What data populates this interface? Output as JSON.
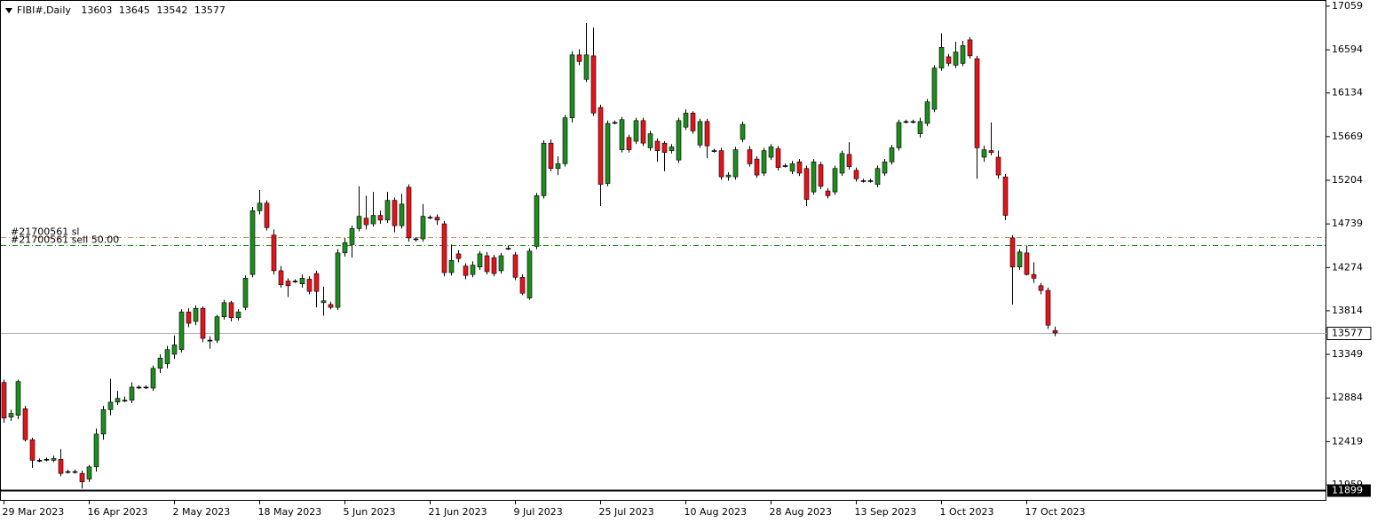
{
  "chart_data": {
    "type": "candlestick",
    "title": "FIBI#,Daily",
    "ylim": [
      11798,
      17125
    ],
    "yticks": [
      17059,
      16594,
      16134,
      15669,
      15204,
      14739,
      14274,
      13814,
      13349,
      12884,
      12419,
      11959
    ],
    "grid": false,
    "up_color": "#1e8c1e",
    "down_color": "#e3141b",
    "current_line_color": "#b0b0b0",
    "categories": [
      "29 Mar 2023",
      null,
      null,
      null,
      null,
      null,
      null,
      null,
      null,
      null,
      null,
      null,
      "16 Apr 2023",
      null,
      null,
      null,
      null,
      null,
      null,
      null,
      null,
      null,
      null,
      null,
      "2 May 2023",
      null,
      null,
      null,
      null,
      null,
      null,
      null,
      null,
      null,
      null,
      null,
      "18 May 2023",
      null,
      null,
      null,
      null,
      null,
      null,
      null,
      null,
      null,
      null,
      null,
      "5 Jun 2023",
      null,
      null,
      null,
      null,
      null,
      null,
      null,
      null,
      null,
      null,
      null,
      "21 Jun 2023",
      null,
      null,
      null,
      null,
      null,
      null,
      null,
      null,
      null,
      null,
      null,
      "9 Jul 2023",
      null,
      null,
      null,
      null,
      null,
      null,
      null,
      null,
      null,
      null,
      null,
      "25 Jul 2023",
      null,
      null,
      null,
      null,
      null,
      null,
      null,
      null,
      null,
      null,
      null,
      "10 Aug 2023",
      null,
      null,
      null,
      null,
      null,
      null,
      null,
      null,
      null,
      null,
      null,
      "28 Aug 2023",
      null,
      null,
      null,
      null,
      null,
      null,
      null,
      null,
      null,
      null,
      null,
      "13 Sep 2023",
      null,
      null,
      null,
      null,
      null,
      null,
      null,
      null,
      null,
      null,
      null,
      "1 Oct 2023",
      null,
      null,
      null,
      null,
      null,
      null,
      null,
      null,
      null,
      null,
      null,
      "17 Oct 2023",
      null,
      null,
      null,
      null
    ],
    "series": {
      "open": [
        13050,
        12680,
        12700,
        12770,
        12440,
        12220,
        12230,
        12220,
        12230,
        12100,
        12100,
        12080,
        12020,
        12150,
        12500,
        12760,
        12840,
        12860,
        12860,
        13000,
        13000,
        12990,
        13200,
        13250,
        13350,
        13400,
        13800,
        13700,
        13840,
        13500,
        13500,
        13750,
        13900,
        13740,
        13850,
        14200,
        14880,
        14960,
        14620,
        14240,
        14130,
        14130,
        14100,
        14150,
        14210,
        13900,
        13880,
        13850,
        14430,
        14520,
        14690,
        14800,
        14740,
        14830,
        14780,
        14990,
        14720,
        15130,
        14580,
        14580,
        14810,
        14810,
        14740,
        14220,
        14420,
        14290,
        14200,
        14280,
        14400,
        14380,
        14240,
        14480,
        14410,
        14170,
        13950,
        14500,
        15040,
        15600,
        15330,
        15380,
        15870,
        16540,
        16280,
        16530,
        15980,
        15170,
        15820,
        15530,
        15660,
        15620,
        15840,
        15550,
        15620,
        15600,
        15520,
        15420,
        15770,
        15920,
        15580,
        15830,
        15520,
        15520,
        15240,
        15240,
        15640,
        15530,
        15430,
        15280,
        15450,
        15540,
        15360,
        15300,
        15400,
        15330,
        15080,
        15370,
        15090,
        15080,
        15280,
        15480,
        15310,
        15200,
        15200,
        15160,
        15280,
        15400,
        15550,
        15830,
        15830,
        15700,
        15810,
        15960,
        16400,
        16520,
        16430,
        16450,
        16700,
        16500,
        15450,
        15520,
        15450,
        15240,
        14590,
        14280,
        14430,
        14200,
        14080,
        14030,
        13603
      ],
      "high": [
        13080,
        12760,
        13080,
        12800,
        12460,
        12240,
        12250,
        12270,
        12340,
        12120,
        12120,
        12110,
        12170,
        12560,
        12800,
        13090,
        12960,
        12900,
        13050,
        13020,
        13020,
        13230,
        13350,
        13440,
        13550,
        13830,
        13840,
        13870,
        13860,
        13540,
        13770,
        13930,
        13920,
        13830,
        14190,
        14920,
        15100,
        14990,
        14680,
        14290,
        14160,
        14150,
        14200,
        14180,
        14240,
        14070,
        13910,
        14470,
        14590,
        14720,
        15140,
        15040,
        15080,
        14880,
        15080,
        15020,
        15060,
        15160,
        14600,
        14950,
        14830,
        14840,
        14770,
        14520,
        14460,
        14320,
        14340,
        14450,
        14440,
        14410,
        14430,
        14510,
        14440,
        14200,
        14480,
        15070,
        15630,
        15640,
        15460,
        15900,
        16580,
        16600,
        16880,
        16830,
        16010,
        15840,
        15840,
        15880,
        15690,
        15870,
        15870,
        15730,
        15650,
        15620,
        15590,
        15870,
        15960,
        15940,
        15860,
        15860,
        15540,
        15550,
        15290,
        15560,
        15830,
        15570,
        15460,
        15550,
        15590,
        15570,
        15380,
        15410,
        15430,
        15360,
        15430,
        15400,
        15120,
        15360,
        15520,
        15610,
        15340,
        15220,
        15220,
        15360,
        15430,
        15580,
        15850,
        15850,
        15850,
        15870,
        16070,
        16430,
        16770,
        16550,
        16680,
        16690,
        16730,
        16530,
        15570,
        15820,
        15520,
        15270,
        14620,
        14470,
        14510,
        14330,
        14110,
        14060,
        13645
      ],
      "low": [
        12620,
        12640,
        12660,
        12420,
        12140,
        12200,
        12210,
        12200,
        12050,
        12080,
        12080,
        11920,
        11990,
        12100,
        12440,
        12700,
        12810,
        12840,
        12830,
        12980,
        12980,
        12960,
        13150,
        13200,
        13300,
        13370,
        13640,
        13660,
        13480,
        13410,
        13470,
        13720,
        13700,
        13710,
        13820,
        14170,
        14840,
        14670,
        14200,
        14060,
        13960,
        14110,
        14060,
        13990,
        13850,
        13760,
        13830,
        13820,
        14390,
        14380,
        14660,
        14680,
        14710,
        14740,
        14750,
        14650,
        14690,
        14550,
        14550,
        14550,
        14790,
        14730,
        14180,
        14190,
        14330,
        14150,
        14170,
        14250,
        14200,
        14180,
        14210,
        14460,
        14140,
        13980,
        13930,
        14470,
        15010,
        15300,
        15260,
        15350,
        15820,
        16430,
        16250,
        15890,
        14930,
        15140,
        15800,
        15500,
        15500,
        15590,
        15570,
        15520,
        15400,
        15300,
        15490,
        15390,
        15740,
        15700,
        15550,
        15440,
        15500,
        15210,
        15200,
        15210,
        15610,
        15350,
        15230,
        15250,
        15420,
        15310,
        15340,
        15270,
        15250,
        14930,
        15050,
        15110,
        15010,
        15050,
        15250,
        15320,
        15190,
        15180,
        15180,
        15130,
        15250,
        15370,
        15520,
        15810,
        15810,
        15660,
        15780,
        15930,
        16370,
        16420,
        16400,
        16420,
        16500,
        15220,
        15400,
        15470,
        15220,
        14780,
        13880,
        14250,
        14190,
        14110,
        13990,
        13620,
        13542
      ],
      "close": [
        12670,
        12720,
        13060,
        12440,
        12220,
        12220,
        12230,
        12240,
        12080,
        12100,
        12100,
        11990,
        12150,
        12500,
        12760,
        12840,
        12880,
        12860,
        13000,
        13000,
        13000,
        13200,
        13310,
        13400,
        13450,
        13800,
        13680,
        13840,
        13520,
        13500,
        13750,
        13900,
        13740,
        13800,
        14160,
        14880,
        14960,
        14700,
        14240,
        14090,
        14080,
        14130,
        14160,
        14020,
        14020,
        13920,
        13850,
        14430,
        14540,
        14690,
        14820,
        14730,
        14830,
        14780,
        14990,
        14720,
        14950,
        14590,
        14580,
        14820,
        14810,
        14780,
        14220,
        14350,
        14370,
        14190,
        14300,
        14420,
        14230,
        14210,
        14400,
        14480,
        14170,
        14000,
        14450,
        15040,
        15600,
        15330,
        15380,
        15870,
        16540,
        16470,
        16540,
        15920,
        15160,
        15810,
        15820,
        15850,
        15530,
        15840,
        15600,
        15700,
        15520,
        15500,
        15560,
        15840,
        15920,
        15730,
        15830,
        15570,
        15520,
        15240,
        15260,
        15530,
        15800,
        15380,
        15260,
        15520,
        15560,
        15340,
        15360,
        15380,
        15280,
        15000,
        15400,
        15140,
        15040,
        15330,
        15490,
        15350,
        15220,
        15200,
        15200,
        15330,
        15400,
        15550,
        15820,
        15830,
        15830,
        15830,
        16040,
        16400,
        16620,
        16450,
        16570,
        16640,
        16530,
        15550,
        15530,
        15500,
        15260,
        14830,
        14280,
        14440,
        14200,
        14160,
        14030,
        13660,
        13577
      ]
    },
    "levels": [
      {
        "label": "#21700561 sl",
        "value": 14597,
        "color": "#c89060"
      },
      {
        "label": "#21700561 sell 50.00",
        "value": 14511,
        "color": "#1e8c1e"
      },
      {
        "value": 11899,
        "color": "#000000"
      }
    ]
  }
}
